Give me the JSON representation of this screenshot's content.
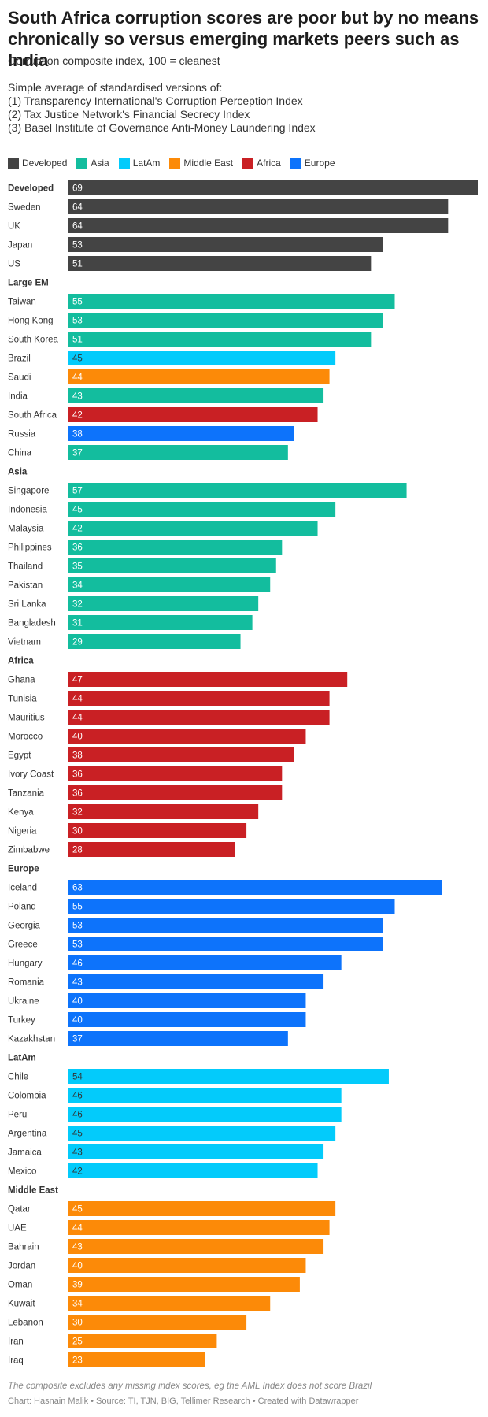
{
  "title": "South Africa corruption scores are poor but by no means chronically so versus emerging markets peers such as India",
  "subtitle": "Corruption composite index, 100 = cleanest",
  "description": [
    "Simple average of standardised versions of:",
    "(1) Transparency International's Corruption Perception Index",
    "(2) Tax Justice Network's Financial Secrecy Index",
    "(3) Basel Institute of Governance Anti-Money Laundering Index"
  ],
  "legend": [
    {
      "name": "Developed",
      "color": "#444444"
    },
    {
      "name": "Asia",
      "color": "#13bd9e"
    },
    {
      "name": "LatAm",
      "color": "#03cbfb"
    },
    {
      "name": "Middle East",
      "color": "#fc8a08"
    },
    {
      "name": "Africa",
      "color": "#c92024"
    },
    {
      "name": "Europe",
      "color": "#0d73fb"
    }
  ],
  "notes": "The composite excludes any missing index scores, eg the AML Index does not score Brazil",
  "footer": "Chart: Hasnain Malik • Source: TI, TJN, BIG, Tellimer Research • Created with Datawrapper",
  "chart_data": {
    "type": "bar",
    "orientation": "horizontal",
    "xlim": [
      0,
      69
    ],
    "rows": [
      {
        "label": "Developed",
        "value": 69,
        "group": "Developed",
        "header": true
      },
      {
        "label": "Sweden",
        "value": 64,
        "group": "Developed"
      },
      {
        "label": "UK",
        "value": 64,
        "group": "Developed"
      },
      {
        "label": "Japan",
        "value": 53,
        "group": "Developed"
      },
      {
        "label": "US",
        "value": 51,
        "group": "Developed"
      },
      {
        "label": "Large EM",
        "value": null,
        "group": null,
        "header": true
      },
      {
        "label": "Taiwan",
        "value": 55,
        "group": "Asia"
      },
      {
        "label": "Hong Kong",
        "value": 53,
        "group": "Asia"
      },
      {
        "label": "South Korea",
        "value": 51,
        "group": "Asia"
      },
      {
        "label": "Brazil",
        "value": 45,
        "group": "LatAm"
      },
      {
        "label": "Saudi",
        "value": 44,
        "group": "Middle East"
      },
      {
        "label": "India",
        "value": 43,
        "group": "Asia"
      },
      {
        "label": "South Africa",
        "value": 42,
        "group": "Africa"
      },
      {
        "label": "Russia",
        "value": 38,
        "group": "Europe"
      },
      {
        "label": "China",
        "value": 37,
        "group": "Asia"
      },
      {
        "label": "Asia",
        "value": null,
        "group": null,
        "header": true
      },
      {
        "label": "Singapore",
        "value": 57,
        "group": "Asia"
      },
      {
        "label": "Indonesia",
        "value": 45,
        "group": "Asia"
      },
      {
        "label": "Malaysia",
        "value": 42,
        "group": "Asia"
      },
      {
        "label": "Philippines",
        "value": 36,
        "group": "Asia"
      },
      {
        "label": "Thailand",
        "value": 35,
        "group": "Asia"
      },
      {
        "label": "Pakistan",
        "value": 34,
        "group": "Asia"
      },
      {
        "label": "Sri Lanka",
        "value": 32,
        "group": "Asia"
      },
      {
        "label": "Bangladesh",
        "value": 31,
        "group": "Asia"
      },
      {
        "label": "Vietnam",
        "value": 29,
        "group": "Asia"
      },
      {
        "label": "Africa",
        "value": null,
        "group": null,
        "header": true
      },
      {
        "label": "Ghana",
        "value": 47,
        "group": "Africa"
      },
      {
        "label": "Tunisia",
        "value": 44,
        "group": "Africa"
      },
      {
        "label": "Mauritius",
        "value": 44,
        "group": "Africa"
      },
      {
        "label": "Morocco",
        "value": 40,
        "group": "Africa"
      },
      {
        "label": "Egypt",
        "value": 38,
        "group": "Africa"
      },
      {
        "label": "Ivory Coast",
        "value": 36,
        "group": "Africa"
      },
      {
        "label": "Tanzania",
        "value": 36,
        "group": "Africa"
      },
      {
        "label": "Kenya",
        "value": 32,
        "group": "Africa"
      },
      {
        "label": "Nigeria",
        "value": 30,
        "group": "Africa"
      },
      {
        "label": "Zimbabwe",
        "value": 28,
        "group": "Africa"
      },
      {
        "label": "Europe",
        "value": null,
        "group": null,
        "header": true
      },
      {
        "label": "Iceland",
        "value": 63,
        "group": "Europe"
      },
      {
        "label": "Poland",
        "value": 55,
        "group": "Europe"
      },
      {
        "label": "Georgia",
        "value": 53,
        "group": "Europe"
      },
      {
        "label": "Greece",
        "value": 53,
        "group": "Europe"
      },
      {
        "label": "Hungary",
        "value": 46,
        "group": "Europe"
      },
      {
        "label": "Romania",
        "value": 43,
        "group": "Europe"
      },
      {
        "label": "Ukraine",
        "value": 40,
        "group": "Europe"
      },
      {
        "label": "Turkey",
        "value": 40,
        "group": "Europe"
      },
      {
        "label": "Kazakhstan",
        "value": 37,
        "group": "Europe"
      },
      {
        "label": "LatAm",
        "value": null,
        "group": null,
        "header": true
      },
      {
        "label": "Chile",
        "value": 54,
        "group": "LatAm"
      },
      {
        "label": "Colombia",
        "value": 46,
        "group": "LatAm"
      },
      {
        "label": "Peru",
        "value": 46,
        "group": "LatAm"
      },
      {
        "label": "Argentina",
        "value": 45,
        "group": "LatAm"
      },
      {
        "label": "Jamaica",
        "value": 43,
        "group": "LatAm"
      },
      {
        "label": "Mexico",
        "value": 42,
        "group": "LatAm"
      },
      {
        "label": "Middle East",
        "value": null,
        "group": null,
        "header": true
      },
      {
        "label": "Qatar",
        "value": 45,
        "group": "Middle East"
      },
      {
        "label": "UAE",
        "value": 44,
        "group": "Middle East"
      },
      {
        "label": "Bahrain",
        "value": 43,
        "group": "Middle East"
      },
      {
        "label": "Jordan",
        "value": 40,
        "group": "Middle East"
      },
      {
        "label": "Oman",
        "value": 39,
        "group": "Middle East"
      },
      {
        "label": "Kuwait",
        "value": 34,
        "group": "Middle East"
      },
      {
        "label": "Lebanon",
        "value": 30,
        "group": "Middle East"
      },
      {
        "label": "Iran",
        "value": 25,
        "group": "Middle East"
      },
      {
        "label": "Iraq",
        "value": 23,
        "group": "Middle East"
      }
    ]
  }
}
